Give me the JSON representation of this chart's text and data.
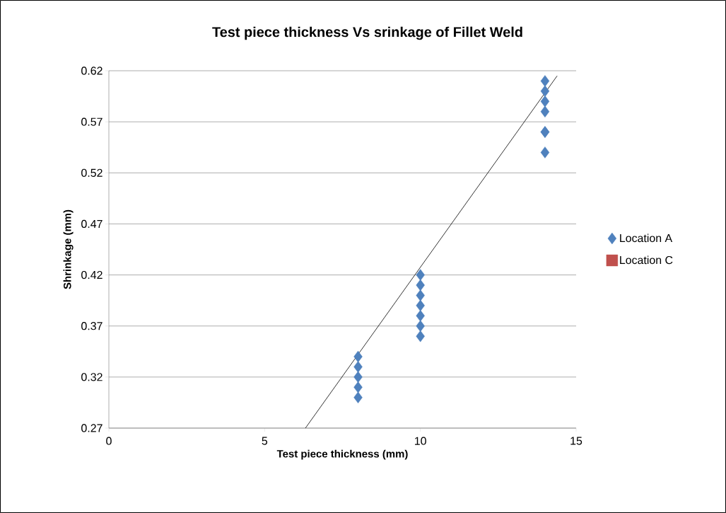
{
  "chart_data": {
    "type": "scatter",
    "title": "Test piece thickness Vs srinkage of Fillet Weld",
    "xlabel": "Test piece thickness (mm)",
    "ylabel": "Shrinkage (mm)",
    "xlim": [
      0,
      15
    ],
    "xticks": [
      0,
      5,
      10,
      15
    ],
    "ylim": [
      0.27,
      0.62
    ],
    "yticks": [
      0.27,
      0.32,
      0.37,
      0.42,
      0.47,
      0.52,
      0.57,
      0.62
    ],
    "grid": "y",
    "legend": "right",
    "marker": "diamond",
    "series": [
      {
        "name": "Location A",
        "color": "#4f81bd",
        "x": [
          8,
          8,
          8,
          8,
          8,
          10,
          10,
          10,
          10,
          10,
          10,
          10,
          14,
          14,
          14,
          14,
          14,
          14,
          14
        ],
        "values": [
          0.3,
          0.31,
          0.32,
          0.33,
          0.34,
          0.36,
          0.37,
          0.38,
          0.39,
          0.4,
          0.41,
          0.42,
          0.54,
          0.56,
          0.56,
          0.58,
          0.59,
          0.6,
          0.61
        ]
      },
      {
        "name": "Location C",
        "color": "#c0504d",
        "marker": "square"
      },
      {
        "type": "line",
        "color": "#000000",
        "marker": "none",
        "x": [
          6.31,
          14.39
        ],
        "values": [
          0.27,
          0.615
        ]
      }
    ]
  }
}
